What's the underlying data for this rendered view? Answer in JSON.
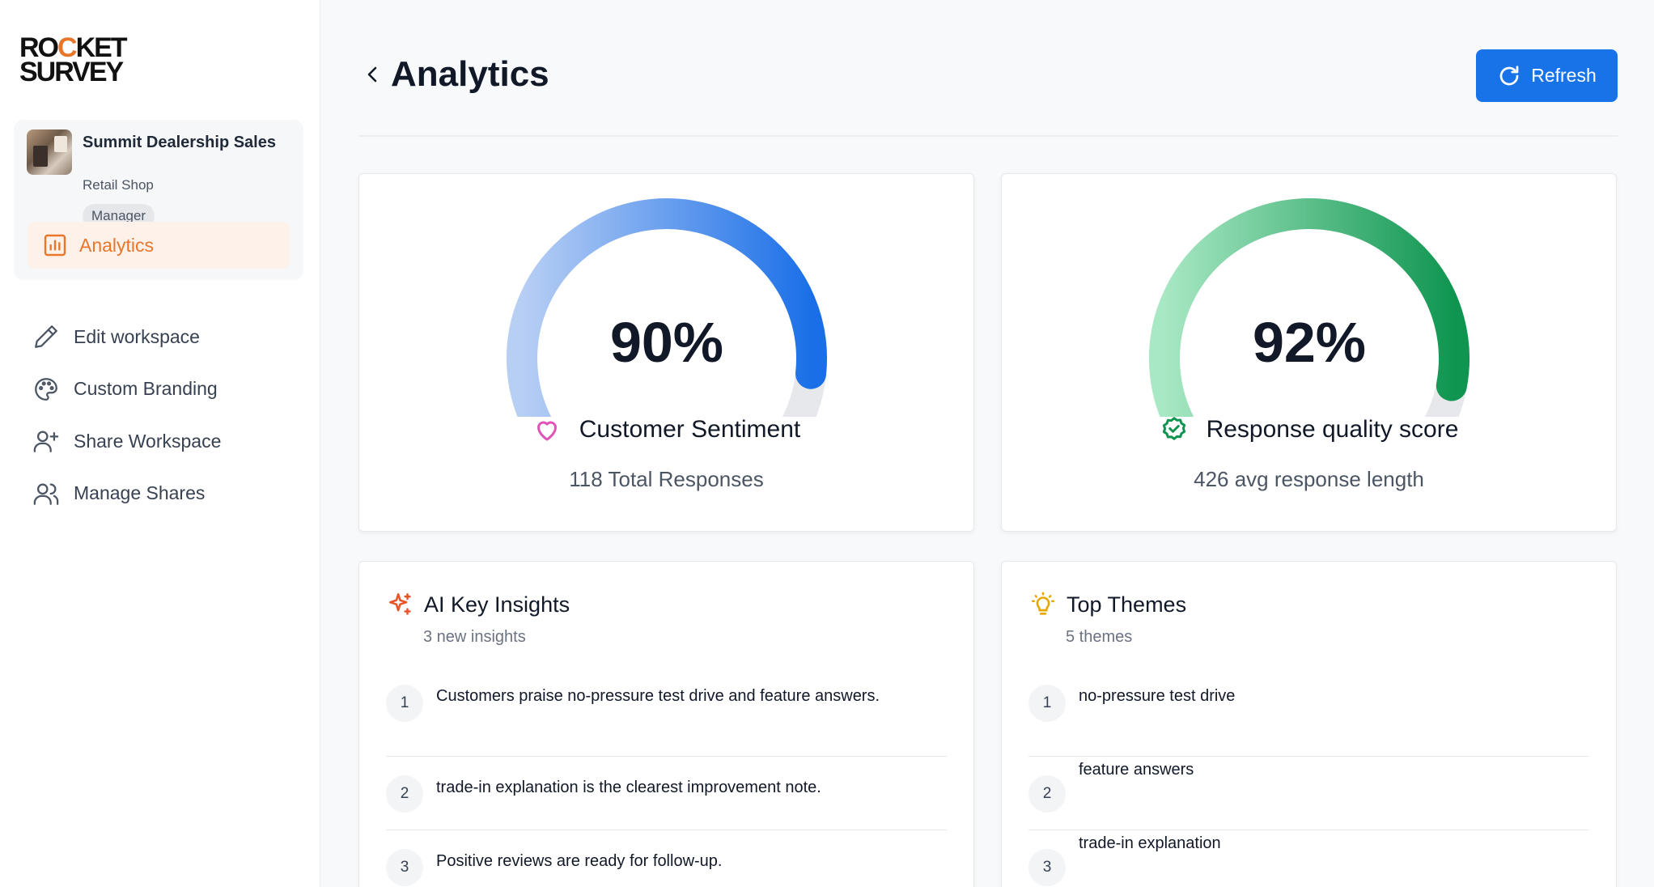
{
  "brand": {
    "logo_line1a": "RO",
    "logo_rocket": "C",
    "logo_line1b": "KET",
    "logo_line2": "SURVEY",
    "accent_color": "#e8762b"
  },
  "workspace": {
    "name": "Summit Dealership Sales",
    "type": "Retail Shop",
    "role": "Manager",
    "active_nav": "Analytics"
  },
  "sidebar": {
    "items": [
      {
        "label": "Edit workspace",
        "icon": "pencil-icon"
      },
      {
        "label": "Custom Branding",
        "icon": "palette-icon"
      },
      {
        "label": "Share Workspace",
        "icon": "user-plus-icon"
      },
      {
        "label": "Manage Shares",
        "icon": "users-icon"
      }
    ]
  },
  "header": {
    "title": "Analytics",
    "refresh_label": "Refresh",
    "primary_color": "#1873e8"
  },
  "gauges": [
    {
      "value": "90%",
      "percent": 90,
      "title": "Customer Sentiment",
      "subtitle": "118 Total Responses",
      "icon": "heart-icon",
      "color_start": "#b8cff4",
      "color_end": "#1a6fe8"
    },
    {
      "value": "92%",
      "percent": 92,
      "title": "Response quality score",
      "subtitle": "426 avg response length",
      "icon": "badge-check-icon",
      "color_start": "#a8e8c4",
      "color_end": "#0f9550"
    }
  ],
  "insights": {
    "title": "AI Key Insights",
    "subtitle": "3 new insights",
    "items": [
      {
        "num": "1",
        "text": "Customers praise no-pressure test drive and feature answers."
      },
      {
        "num": "2",
        "text": "trade-in explanation is the clearest improvement note."
      },
      {
        "num": "3",
        "text": "Positive reviews are ready for follow-up."
      }
    ]
  },
  "themes": {
    "title": "Top Themes",
    "subtitle": "5 themes",
    "items": [
      {
        "num": "1",
        "text": "no-pressure test drive"
      },
      {
        "num": "2",
        "text": "feature answers"
      },
      {
        "num": "3",
        "text": "trade-in explanation"
      }
    ]
  }
}
